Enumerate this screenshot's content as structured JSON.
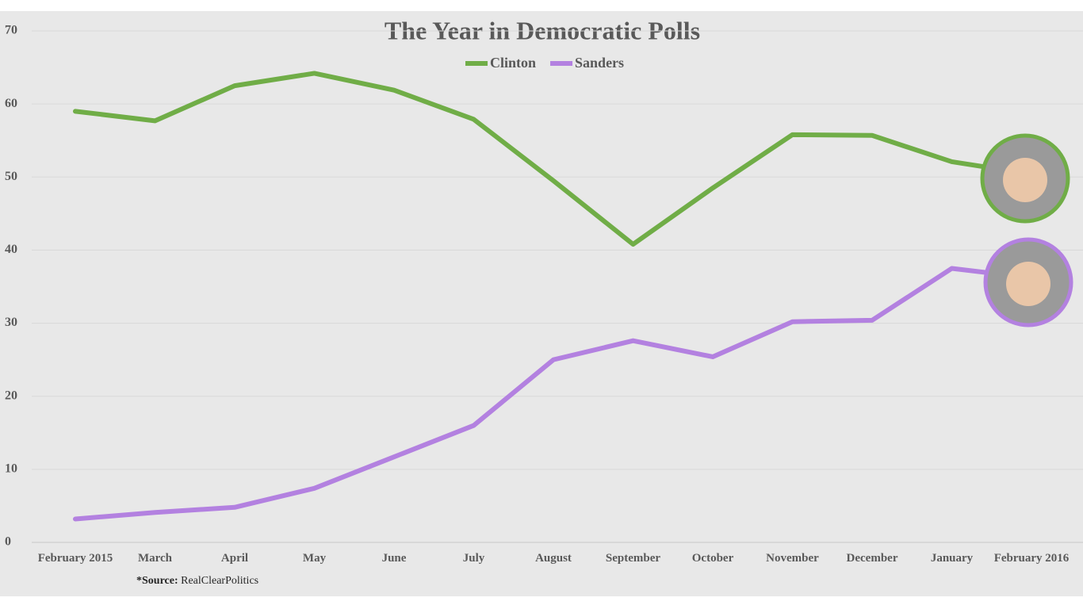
{
  "chart_data": {
    "type": "line",
    "title": "The Year in Democratic Polls",
    "categories": [
      "February 2015",
      "March",
      "April",
      "May",
      "June",
      "July",
      "August",
      "September",
      "October",
      "November",
      "December",
      "January",
      "February 2016"
    ],
    "series": [
      {
        "name": "Clinton",
        "color": "#70ad47",
        "values": [
          59.0,
          57.7,
          62.5,
          64.2,
          61.9,
          57.9,
          49.5,
          40.8,
          48.5,
          55.8,
          55.7,
          52.1,
          50.4
        ]
      },
      {
        "name": "Sanders",
        "color": "#b381e0",
        "values": [
          3.2,
          4.1,
          4.8,
          7.4,
          11.7,
          16.0,
          25.0,
          27.6,
          25.4,
          30.2,
          30.4,
          37.5,
          36.2
        ]
      }
    ],
    "ylim": [
      0,
      70
    ],
    "yticks": [
      0,
      10,
      20,
      30,
      40,
      50,
      60,
      70
    ],
    "grid": true,
    "legend": "top",
    "source_label": "*Source:",
    "source": "RealClearPolitics"
  }
}
